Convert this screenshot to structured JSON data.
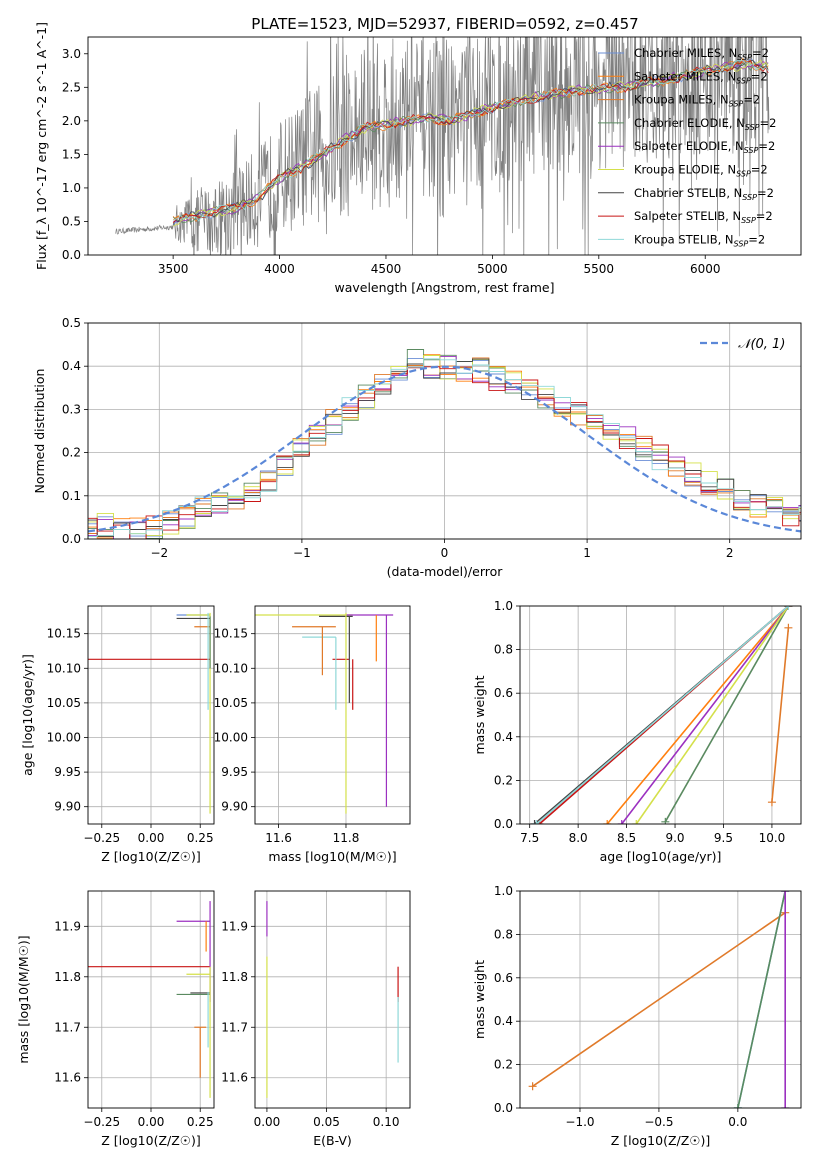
{
  "figure": {
    "title": "PLATE=1523, MJD=52937, FIBERID=0592, z=0.457"
  },
  "legend_models": [
    {
      "label": "Chabrier MILES, N_SSP=2",
      "color": "#6b8fd6"
    },
    {
      "label": "Salpeter MILES, N_SSP=2",
      "color": "#ff7f0e"
    },
    {
      "label": "Kroupa MILES, N_SSP=2",
      "color": "#e07a2a"
    },
    {
      "label": "Chabrier ELODIE, N_SSP=2",
      "color": "#5a8a60"
    },
    {
      "label": "Salpeter ELODIE, N_SSP=2",
      "color": "#9b30c0"
    },
    {
      "label": "Kroupa ELODIE, N_SSP=2",
      "color": "#d4e04a"
    },
    {
      "label": "Chabrier STELIB, N_SSP=2",
      "color": "#444444"
    },
    {
      "label": "Salpeter STELIB, N_SSP=2",
      "color": "#c81414"
    },
    {
      "label": "Kroupa STELIB, N_SSP=2",
      "color": "#8fd8d8"
    }
  ],
  "chart_data": [
    {
      "id": "spectrum",
      "type": "line",
      "xlabel": "wavelength [Angstrom, rest frame]",
      "ylabel": "Flux [f_λ 10^-17 erg cm^-2 s^-1 A^-1]",
      "xlim": [
        3100,
        6450
      ],
      "ylim": [
        0,
        3.25
      ],
      "xticks": [
        3500,
        4000,
        4500,
        5000,
        5500,
        6000
      ],
      "yticks": [
        0.0,
        0.5,
        1.0,
        1.5,
        2.0,
        2.5,
        3.0
      ],
      "grid": false,
      "legend_position": "upper-right",
      "data_color": "#808080",
      "data_trend": {
        "x": [
          3230,
          3500,
          3510,
          3700,
          3900,
          4000,
          4200,
          4500,
          4800,
          5000,
          5300,
          5600,
          5900,
          6200,
          6300
        ],
        "y": [
          0.35,
          0.42,
          0.45,
          0.55,
          0.85,
          1.15,
          1.55,
          2.0,
          2.1,
          2.25,
          2.45,
          2.55,
          2.7,
          2.8,
          2.8
        ]
      },
      "model_trend": {
        "x": [
          3500,
          3600,
          3700,
          3800,
          3900,
          4000,
          4100,
          4200,
          4300,
          4400,
          4500,
          4600,
          4700,
          4800,
          4900,
          5000,
          5200,
          5400,
          5600,
          5800,
          6000,
          6200,
          6300
        ],
        "y": [
          0.5,
          0.58,
          0.65,
          0.7,
          0.85,
          1.15,
          1.3,
          1.5,
          1.7,
          1.9,
          1.95,
          2.0,
          2.05,
          2.0,
          2.1,
          2.2,
          2.35,
          2.45,
          2.5,
          2.6,
          2.75,
          2.85,
          2.8
        ]
      }
    },
    {
      "id": "residual_hist",
      "type": "line",
      "xlabel": "(data-model)/error",
      "ylabel": "Normed distribution",
      "xlim": [
        -2.5,
        2.5
      ],
      "ylim": [
        0,
        0.5
      ],
      "xticks": [
        -2,
        -1,
        0,
        1,
        2
      ],
      "yticks": [
        0.0,
        0.1,
        0.2,
        0.3,
        0.4,
        0.5
      ],
      "grid": true,
      "legend_position": "upper-right",
      "legend_label": "𝒩(0, 1)",
      "gaussian_color": "#5b88d8",
      "hist_envelope": [
        0.02,
        0.03,
        0.02,
        0.02,
        0.03,
        0.04,
        0.05,
        0.07,
        0.08,
        0.09,
        0.11,
        0.14,
        0.17,
        0.21,
        0.24,
        0.27,
        0.3,
        0.33,
        0.36,
        0.39,
        0.41,
        0.4,
        0.4,
        0.39,
        0.39,
        0.37,
        0.36,
        0.35,
        0.33,
        0.31,
        0.29,
        0.27,
        0.25,
        0.23,
        0.21,
        0.19,
        0.17,
        0.15,
        0.13,
        0.11,
        0.09,
        0.08,
        0.07,
        0.06,
        0.05
      ]
    },
    {
      "id": "age_vs_Z",
      "type": "scatter",
      "xlabel": "Z [log10(Z/Z☉)]",
      "ylabel": "age  [log10(age/yr)]",
      "xlim": [
        -0.32,
        0.32
      ],
      "ylim": [
        9.875,
        10.19
      ],
      "xticks": [
        -0.25,
        0.0,
        0.25
      ],
      "yticks": [
        9.9,
        9.95,
        10.0,
        10.05,
        10.1,
        10.15
      ],
      "grid": true,
      "segments": [
        {
          "model": 7,
          "type": "h",
          "y": 10.113,
          "x1": -0.32,
          "x2": 0.3
        },
        {
          "model": 0,
          "type": "h",
          "y": 10.177,
          "x1": 0.13,
          "x2": 0.3
        },
        {
          "model": 6,
          "type": "h",
          "y": 10.172,
          "x1": 0.13,
          "x2": 0.3
        },
        {
          "model": 5,
          "type": "h",
          "y": 10.177,
          "x1": 0.18,
          "x2": 0.3
        },
        {
          "model": 2,
          "type": "h",
          "y": 10.16,
          "x1": 0.22,
          "x2": 0.3
        },
        {
          "model": 8,
          "type": "v",
          "x": 0.29,
          "y1": 10.04,
          "y2": 10.18
        },
        {
          "model": 5,
          "type": "v",
          "x": 0.3,
          "y1": 9.89,
          "y2": 10.18
        },
        {
          "model": 3,
          "type": "v",
          "x": 0.3,
          "y1": 10.1,
          "y2": 10.175
        }
      ]
    },
    {
      "id": "age_vs_mass",
      "type": "scatter",
      "xlabel": "mass [log10(M/M☉)]",
      "ylabel": "",
      "xlim": [
        11.53,
        11.99
      ],
      "ylim": [
        9.875,
        10.19
      ],
      "xticks": [
        11.6,
        11.8
      ],
      "yticks": [
        9.9,
        9.95,
        10.0,
        10.05,
        10.1,
        10.15
      ],
      "grid": true,
      "segments": [
        {
          "model": 5,
          "type": "h",
          "y": 10.177,
          "x1": 11.53,
          "x2": 11.82
        },
        {
          "model": 4,
          "type": "h",
          "y": 10.177,
          "x1": 11.8,
          "x2": 11.94
        },
        {
          "model": 2,
          "type": "h",
          "y": 10.16,
          "x1": 11.64,
          "x2": 11.77
        },
        {
          "model": 8,
          "type": "h",
          "y": 10.145,
          "x1": 11.67,
          "x2": 11.77
        },
        {
          "model": 6,
          "type": "h",
          "y": 10.175,
          "x1": 11.72,
          "x2": 11.82
        },
        {
          "model": 7,
          "type": "h",
          "y": 10.113,
          "x1": 11.76,
          "x2": 11.81
        },
        {
          "model": 4,
          "type": "v",
          "x": 11.92,
          "y1": 9.9,
          "y2": 10.177
        },
        {
          "model": 5,
          "type": "v",
          "x": 11.8,
          "y1": 9.89,
          "y2": 10.18
        },
        {
          "model": 2,
          "type": "v",
          "x": 11.73,
          "y1": 10.09,
          "y2": 10.16
        },
        {
          "model": 8,
          "type": "v",
          "x": 11.77,
          "y1": 10.04,
          "y2": 10.145
        },
        {
          "model": 7,
          "type": "v",
          "x": 11.82,
          "y1": 10.04,
          "y2": 10.113
        },
        {
          "model": 1,
          "type": "v",
          "x": 11.89,
          "y1": 10.11,
          "y2": 10.177
        },
        {
          "model": 6,
          "type": "v",
          "x": 11.81,
          "y1": 10.05,
          "y2": 10.175
        }
      ]
    },
    {
      "id": "cum_weight_vs_age",
      "type": "line",
      "xlabel": "age  [log10(age/yr)]",
      "ylabel": "mass weight",
      "xlim": [
        7.4,
        10.3
      ],
      "ylim": [
        0,
        1.0
      ],
      "xticks": [
        7.5,
        8.0,
        8.5,
        9.0,
        9.5,
        10.0
      ],
      "yticks": [
        0.0,
        0.2,
        0.4,
        0.6,
        0.8,
        1.0
      ],
      "grid": true,
      "series": [
        {
          "model": 0,
          "x": [
            7.57,
            10.17
          ],
          "y": [
            0.0,
            1.0
          ]
        },
        {
          "model": 1,
          "x": [
            8.3,
            10.17
          ],
          "y": [
            0.0,
            1.0
          ]
        },
        {
          "model": 2,
          "x": [
            10.0,
            10.17
          ],
          "y": [
            0.1,
            0.9
          ]
        },
        {
          "model": 3,
          "x": [
            8.9,
            10.17
          ],
          "y": [
            0.01,
            1.0
          ]
        },
        {
          "model": 4,
          "x": [
            8.45,
            10.17
          ],
          "y": [
            0.0,
            1.0
          ]
        },
        {
          "model": 5,
          "x": [
            8.6,
            10.17
          ],
          "y": [
            0.0,
            1.0
          ]
        },
        {
          "model": 6,
          "x": [
            7.55,
            10.17
          ],
          "y": [
            0.0,
            1.0
          ]
        },
        {
          "model": 7,
          "x": [
            7.6,
            10.17
          ],
          "y": [
            0.0,
            1.0
          ]
        },
        {
          "model": 8,
          "x": [
            7.57,
            10.17
          ],
          "y": [
            0.0,
            1.0
          ]
        }
      ]
    },
    {
      "id": "mass_vs_Z",
      "type": "scatter",
      "xlabel": "Z [log10(Z/Z☉)]",
      "ylabel": "mass [log10(M/M☉)]",
      "xlim": [
        -0.32,
        0.32
      ],
      "ylim": [
        11.54,
        11.97
      ],
      "xticks": [
        -0.25,
        0.0,
        0.25
      ],
      "yticks": [
        11.6,
        11.7,
        11.8,
        11.9
      ],
      "grid": true,
      "segments": [
        {
          "model": 7,
          "type": "h",
          "y": 11.82,
          "x1": -0.32,
          "x2": 0.3
        },
        {
          "model": 4,
          "type": "h",
          "y": 11.91,
          "x1": 0.13,
          "x2": 0.3
        },
        {
          "model": 5,
          "type": "h",
          "y": 11.805,
          "x1": 0.18,
          "x2": 0.3
        },
        {
          "model": 3,
          "type": "h",
          "y": 11.765,
          "x1": 0.13,
          "x2": 0.3
        },
        {
          "model": 6,
          "type": "h",
          "y": 11.768,
          "x1": 0.2,
          "x2": 0.3
        },
        {
          "model": 2,
          "type": "h",
          "y": 11.7,
          "x1": 0.22,
          "x2": 0.28
        },
        {
          "model": 4,
          "type": "v",
          "x": 0.3,
          "y1": 11.75,
          "y2": 11.95
        },
        {
          "model": 5,
          "type": "v",
          "x": 0.3,
          "y1": 11.56,
          "y2": 11.82
        },
        {
          "model": 2,
          "type": "v",
          "x": 0.25,
          "y1": 11.6,
          "y2": 11.7
        },
        {
          "model": 1,
          "type": "v",
          "x": 0.28,
          "y1": 11.85,
          "y2": 11.91
        },
        {
          "model": 8,
          "type": "v",
          "x": 0.29,
          "y1": 11.66,
          "y2": 11.77
        }
      ]
    },
    {
      "id": "mass_vs_EBV",
      "type": "scatter",
      "xlabel": "E(B-V)",
      "ylabel": "",
      "xlim": [
        -0.01,
        0.12
      ],
      "ylim": [
        11.54,
        11.97
      ],
      "xticks": [
        0.0,
        0.05,
        0.1
      ],
      "yticks": [
        11.6,
        11.7,
        11.8,
        11.9
      ],
      "grid": true,
      "segments": [
        {
          "model": 4,
          "type": "v",
          "x": 0.0,
          "y1": 11.88,
          "y2": 11.95
        },
        {
          "model": 5,
          "type": "v",
          "x": 0.0,
          "y1": 11.56,
          "y2": 11.84
        },
        {
          "model": 7,
          "type": "v",
          "x": 0.11,
          "y1": 11.75,
          "y2": 11.82
        },
        {
          "model": 8,
          "type": "v",
          "x": 0.11,
          "y1": 11.63,
          "y2": 11.76
        }
      ]
    },
    {
      "id": "cum_weight_vs_Z",
      "type": "line",
      "xlabel": "Z [log10(Z/Z☉)]",
      "ylabel": "mass weight",
      "xlim": [
        -1.38,
        0.4
      ],
      "ylim": [
        0,
        1.0
      ],
      "xticks": [
        -1.0,
        -0.5,
        0.0
      ],
      "yticks": [
        0.0,
        0.2,
        0.4,
        0.6,
        0.8,
        1.0
      ],
      "grid": true,
      "series": [
        {
          "model": 2,
          "x": [
            -1.3,
            0.3
          ],
          "y": [
            0.1,
            0.9
          ]
        },
        {
          "model": 0,
          "x": [
            0.0,
            0.3
          ],
          "y": [
            0.0,
            1.0
          ]
        },
        {
          "model": 8,
          "x": [
            0.0,
            0.3
          ],
          "y": [
            0.0,
            1.0
          ]
        },
        {
          "model": 3,
          "x": [
            0.0,
            0.3
          ],
          "y": [
            0.0,
            1.0
          ]
        },
        {
          "model": 4,
          "x": [
            0.3,
            0.3
          ],
          "y": [
            0.0,
            1.0
          ]
        }
      ]
    }
  ]
}
